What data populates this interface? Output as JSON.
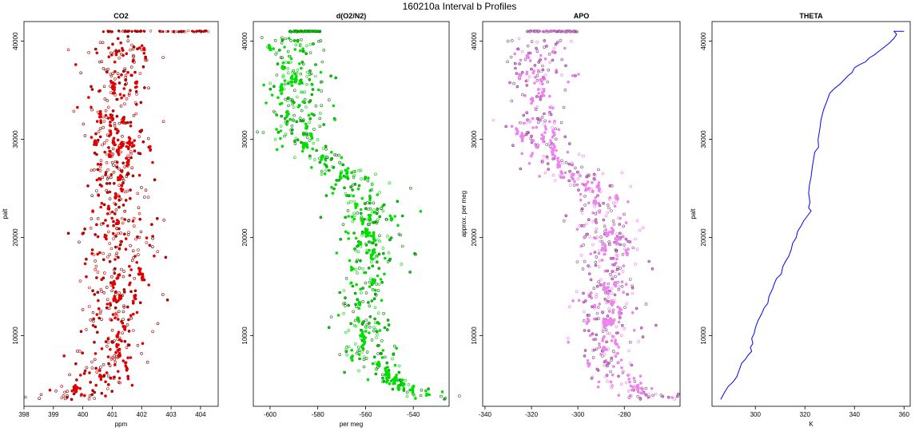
{
  "figure": {
    "title": "160210a   Interval b Profiles"
  },
  "chart_data": [
    {
      "type": "scatter",
      "title": "CO2",
      "xlabel": "ppm",
      "ylabel": "palt",
      "xlim": [
        398.0,
        404.6
      ],
      "ylim": [
        2800,
        42000
      ],
      "xticks": [
        398,
        399,
        400,
        401,
        402,
        403,
        404
      ],
      "yticks": [
        10000,
        20000,
        30000,
        40000
      ],
      "grid": false,
      "series": [
        {
          "style": "points",
          "color": "#e00000",
          "profile": [
            [
              3500,
              399.7
            ],
            [
              4500,
              400.1
            ],
            [
              5200,
              400.6
            ],
            [
              7000,
              401.0
            ],
            [
              10000,
              401.1
            ],
            [
              15000,
              401.2
            ],
            [
              20000,
              401.3
            ],
            [
              25000,
              401.25
            ],
            [
              30000,
              401.2
            ],
            [
              35000,
              401.2
            ],
            [
              40000,
              401.4
            ],
            [
              41000,
              401.5
            ]
          ],
          "spread": [
            [
              3500,
              0.6
            ],
            [
              10000,
              0.55
            ],
            [
              20000,
              0.6
            ],
            [
              30000,
              0.55
            ],
            [
              40000,
              0.6
            ]
          ],
          "n_points": 620,
          "top_band": {
            "y": 41000,
            "x": [
              400.7,
              404.3
            ]
          }
        }
      ]
    },
    {
      "type": "scatter",
      "title": "d(O2/N2)",
      "xlabel": "per meg",
      "ylabel": "",
      "xlim": [
        -607,
        -525
      ],
      "ylim": [
        2800,
        42000
      ],
      "xticks": [
        -600,
        -580,
        -560,
        -540
      ],
      "yticks": [
        10000,
        20000,
        30000,
        40000
      ],
      "grid": false,
      "series": [
        {
          "style": "points",
          "color": "#00e000",
          "profile": [
            [
              3600,
              -532
            ],
            [
              4500,
              -540
            ],
            [
              5500,
              -550
            ],
            [
              7000,
              -557
            ],
            [
              10000,
              -559
            ],
            [
              14000,
              -561
            ],
            [
              17000,
              -557
            ],
            [
              20000,
              -557
            ],
            [
              23000,
              -560
            ],
            [
              26000,
              -565
            ],
            [
              28000,
              -578
            ],
            [
              30000,
              -588
            ],
            [
              33000,
              -590
            ],
            [
              36000,
              -588
            ],
            [
              39000,
              -590
            ],
            [
              41000,
              -590
            ]
          ],
          "spread": [
            [
              3600,
              5
            ],
            [
              10000,
              6
            ],
            [
              20000,
              6
            ],
            [
              30000,
              6
            ],
            [
              40000,
              6
            ]
          ],
          "n_points": 620,
          "top_band": {
            "y": 41000,
            "x": [
              -592,
              -579
            ]
          }
        }
      ]
    },
    {
      "type": "scatter",
      "title": "APO",
      "xlabel": "",
      "ylabel": "approx. per meg",
      "xlim": [
        -341,
        -256
      ],
      "ylim": [
        2800,
        42000
      ],
      "xticks": [
        -340,
        -320,
        -300,
        -280
      ],
      "yticks": [
        10000,
        20000,
        30000,
        40000
      ],
      "grid": false,
      "series": [
        {
          "style": "points",
          "color": "#ee82ee",
          "profile": [
            [
              3600,
              -270
            ],
            [
              4500,
              -277
            ],
            [
              6000,
              -285
            ],
            [
              10000,
              -289
            ],
            [
              15000,
              -287
            ],
            [
              20000,
              -287
            ],
            [
              24000,
              -292
            ],
            [
              27000,
              -305
            ],
            [
              30000,
              -318
            ],
            [
              35000,
              -318
            ],
            [
              39000,
              -318
            ],
            [
              41000,
              -318
            ]
          ],
          "spread": [
            [
              3600,
              6
            ],
            [
              10000,
              7
            ],
            [
              20000,
              7
            ],
            [
              30000,
              7
            ],
            [
              40000,
              7
            ]
          ],
          "n_points": 620,
          "top_band": {
            "y": 41000,
            "x": [
              -322,
              -300
            ]
          }
        }
      ]
    },
    {
      "type": "line",
      "title": "THETA",
      "xlabel": "K",
      "ylabel": "palt",
      "xlim": [
        282.5,
        362.5
      ],
      "ylim": [
        2800,
        42000
      ],
      "xticks": [
        300,
        320,
        340,
        360
      ],
      "yticks": [
        10000,
        20000,
        30000,
        40000
      ],
      "grid": false,
      "series": [
        {
          "style": "line",
          "color": "#0000ff",
          "points": [
            [
              286.0,
              3500
            ],
            [
              287.5,
              4200
            ],
            [
              289.0,
              4800
            ],
            [
              291.0,
              5300
            ],
            [
              292.5,
              5800
            ],
            [
              293.5,
              6500
            ],
            [
              294.5,
              7200
            ],
            [
              296.0,
              7600
            ],
            [
              297.0,
              8000
            ],
            [
              298.5,
              8400
            ],
            [
              298.0,
              8800
            ],
            [
              299.0,
              9200
            ],
            [
              298.5,
              9700
            ],
            [
              299.5,
              10200
            ],
            [
              300.0,
              10800
            ],
            [
              301.0,
              11500
            ],
            [
              302.5,
              12200
            ],
            [
              303.5,
              12800
            ],
            [
              305.0,
              13300
            ],
            [
              305.5,
              14000
            ],
            [
              307.0,
              14800
            ],
            [
              307.5,
              15200
            ],
            [
              308.5,
              15800
            ],
            [
              310.5,
              16300
            ],
            [
              311.0,
              17000
            ],
            [
              312.0,
              17500
            ],
            [
              313.5,
              18100
            ],
            [
              314.5,
              18800
            ],
            [
              315.0,
              19400
            ],
            [
              316.5,
              20000
            ],
            [
              317.0,
              20600
            ],
            [
              318.5,
              21200
            ],
            [
              319.5,
              21700
            ],
            [
              321.0,
              22200
            ],
            [
              322.5,
              22700
            ],
            [
              321.5,
              23000
            ],
            [
              322.0,
              23600
            ],
            [
              321.5,
              24500
            ],
            [
              321.8,
              25300
            ],
            [
              322.5,
              26200
            ],
            [
              323.0,
              27200
            ],
            [
              323.5,
              28000
            ],
            [
              324.0,
              28700
            ],
            [
              325.5,
              29200
            ],
            [
              325.3,
              30000
            ],
            [
              326.0,
              31000
            ],
            [
              326.5,
              32000
            ],
            [
              327.5,
              33000
            ],
            [
              329.0,
              34000
            ],
            [
              330.0,
              34700
            ],
            [
              332.0,
              35200
            ],
            [
              334.0,
              35600
            ],
            [
              336.0,
              36100
            ],
            [
              337.5,
              36500
            ],
            [
              339.0,
              36800
            ],
            [
              340.0,
              37300
            ],
            [
              342.0,
              37600
            ],
            [
              344.5,
              37900
            ],
            [
              346.0,
              38300
            ],
            [
              348.0,
              38600
            ],
            [
              350.0,
              39000
            ],
            [
              352.0,
              39400
            ],
            [
              354.0,
              39800
            ],
            [
              356.0,
              40300
            ],
            [
              357.0,
              40700
            ],
            [
              356.0,
              41000
            ],
            [
              360.0,
              41000
            ]
          ]
        }
      ]
    }
  ]
}
